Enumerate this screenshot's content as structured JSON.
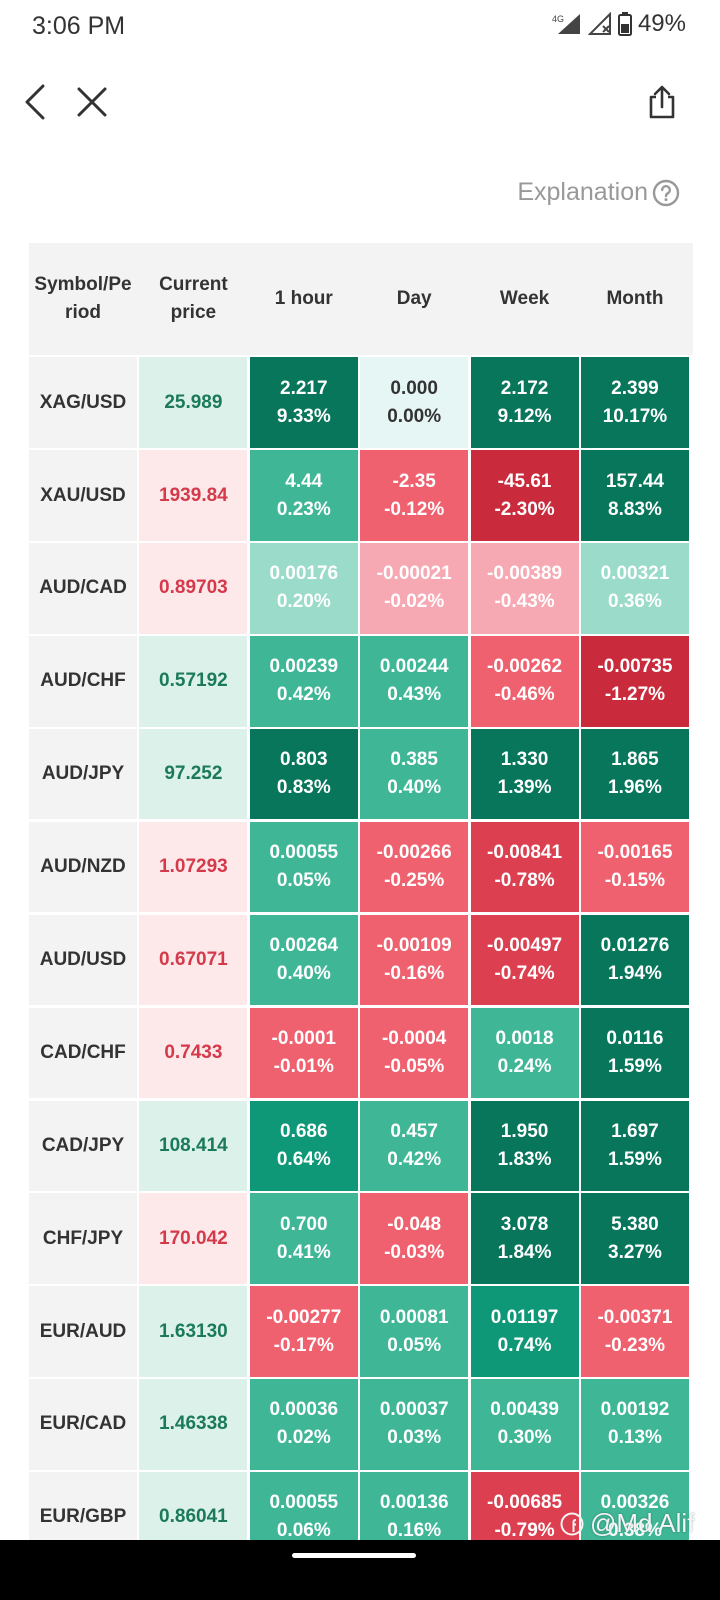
{
  "status": {
    "time": "3:06 PM",
    "network": "4G",
    "battery": "49%"
  },
  "explanation": {
    "label": "Explanation"
  },
  "table": {
    "headers": [
      "Symbol/Period",
      "Current price",
      "1 hour",
      "Day",
      "Week",
      "Month"
    ],
    "rows": [
      {
        "symbol": "XAG/USD",
        "price": "25.989",
        "dir": "up",
        "cells": [
          {
            "v": "2.217",
            "p": "9.33%",
            "c": "gd"
          },
          {
            "v": "0.000",
            "p": "0.00%",
            "c": "nz"
          },
          {
            "v": "2.172",
            "p": "9.12%",
            "c": "gd"
          },
          {
            "v": "2.399",
            "p": "10.17%",
            "c": "gd"
          }
        ]
      },
      {
        "symbol": "XAU/USD",
        "price": "1939.84",
        "dir": "down",
        "cells": [
          {
            "v": "4.44",
            "p": "0.23%",
            "c": "g"
          },
          {
            "v": "-2.35",
            "p": "-0.12%",
            "c": "r"
          },
          {
            "v": "-45.61",
            "p": "-2.30%",
            "c": "rd"
          },
          {
            "v": "157.44",
            "p": "8.83%",
            "c": "gd"
          }
        ]
      },
      {
        "symbol": "AUD/CAD",
        "price": "0.89703",
        "dir": "down",
        "cells": [
          {
            "v": "0.00176",
            "p": "0.20%",
            "c": "gl"
          },
          {
            "v": "-0.00021",
            "p": "-0.02%",
            "c": "rl"
          },
          {
            "v": "-0.00389",
            "p": "-0.43%",
            "c": "rl"
          },
          {
            "v": "0.00321",
            "p": "0.36%",
            "c": "gl"
          }
        ]
      },
      {
        "symbol": "AUD/CHF",
        "price": "0.57192",
        "dir": "up",
        "cells": [
          {
            "v": "0.00239",
            "p": "0.42%",
            "c": "g"
          },
          {
            "v": "0.00244",
            "p": "0.43%",
            "c": "g"
          },
          {
            "v": "-0.00262",
            "p": "-0.46%",
            "c": "r"
          },
          {
            "v": "-0.00735",
            "p": "-1.27%",
            "c": "rd"
          }
        ]
      },
      {
        "symbol": "AUD/JPY",
        "price": "97.252",
        "dir": "up",
        "cells": [
          {
            "v": "0.803",
            "p": "0.83%",
            "c": "gd"
          },
          {
            "v": "0.385",
            "p": "0.40%",
            "c": "g"
          },
          {
            "v": "1.330",
            "p": "1.39%",
            "c": "gd"
          },
          {
            "v": "1.865",
            "p": "1.96%",
            "c": "gd"
          }
        ]
      },
      {
        "symbol": "AUD/NZD",
        "price": "1.07293",
        "dir": "down",
        "cells": [
          {
            "v": "0.00055",
            "p": "0.05%",
            "c": "g"
          },
          {
            "v": "-0.00266",
            "p": "-0.25%",
            "c": "r"
          },
          {
            "v": "-0.00841",
            "p": "-0.78%",
            "c": "rm"
          },
          {
            "v": "-0.00165",
            "p": "-0.15%",
            "c": "r"
          }
        ]
      },
      {
        "symbol": "AUD/USD",
        "price": "0.67071",
        "dir": "down",
        "cells": [
          {
            "v": "0.00264",
            "p": "0.40%",
            "c": "g"
          },
          {
            "v": "-0.00109",
            "p": "-0.16%",
            "c": "r"
          },
          {
            "v": "-0.00497",
            "p": "-0.74%",
            "c": "rm"
          },
          {
            "v": "0.01276",
            "p": "1.94%",
            "c": "gd"
          }
        ]
      },
      {
        "symbol": "CAD/CHF",
        "price": "0.7433",
        "dir": "down",
        "cells": [
          {
            "v": "-0.0001",
            "p": "-0.01%",
            "c": "r"
          },
          {
            "v": "-0.0004",
            "p": "-0.05%",
            "c": "r"
          },
          {
            "v": "0.0018",
            "p": "0.24%",
            "c": "g"
          },
          {
            "v": "0.0116",
            "p": "1.59%",
            "c": "gd"
          }
        ]
      },
      {
        "symbol": "CAD/JPY",
        "price": "108.414",
        "dir": "up",
        "cells": [
          {
            "v": "0.686",
            "p": "0.64%",
            "c": "gm"
          },
          {
            "v": "0.457",
            "p": "0.42%",
            "c": "g"
          },
          {
            "v": "1.950",
            "p": "1.83%",
            "c": "gd"
          },
          {
            "v": "1.697",
            "p": "1.59%",
            "c": "gd"
          }
        ]
      },
      {
        "symbol": "CHF/JPY",
        "price": "170.042",
        "dir": "down",
        "cells": [
          {
            "v": "0.700",
            "p": "0.41%",
            "c": "g"
          },
          {
            "v": "-0.048",
            "p": "-0.03%",
            "c": "r"
          },
          {
            "v": "3.078",
            "p": "1.84%",
            "c": "gd"
          },
          {
            "v": "5.380",
            "p": "3.27%",
            "c": "gd"
          }
        ]
      },
      {
        "symbol": "EUR/AUD",
        "price": "1.63130",
        "dir": "up",
        "cells": [
          {
            "v": "-0.00277",
            "p": "-0.17%",
            "c": "r"
          },
          {
            "v": "0.00081",
            "p": "0.05%",
            "c": "g"
          },
          {
            "v": "0.01197",
            "p": "0.74%",
            "c": "gm"
          },
          {
            "v": "-0.00371",
            "p": "-0.23%",
            "c": "r"
          }
        ]
      },
      {
        "symbol": "EUR/CAD",
        "price": "1.46338",
        "dir": "up",
        "cells": [
          {
            "v": "0.00036",
            "p": "0.02%",
            "c": "g"
          },
          {
            "v": "0.00037",
            "p": "0.03%",
            "c": "g"
          },
          {
            "v": "0.00439",
            "p": "0.30%",
            "c": "g"
          },
          {
            "v": "0.00192",
            "p": "0.13%",
            "c": "g"
          }
        ]
      },
      {
        "symbol": "EUR/GBP",
        "price": "0.86041",
        "dir": "up",
        "cells": [
          {
            "v": "0.00055",
            "p": "0.06%",
            "c": "g"
          },
          {
            "v": "0.00136",
            "p": "0.16%",
            "c": "g"
          },
          {
            "v": "-0.00685",
            "p": "-0.79%",
            "c": "rm"
          },
          {
            "v": "0.00326",
            "p": "0.38%",
            "c": "g"
          }
        ]
      }
    ]
  },
  "watermark": {
    "text": "@Md Alif"
  },
  "icons": {
    "back": "back-icon",
    "close": "close-icon",
    "share": "share-icon",
    "help": "help-circle-icon"
  }
}
